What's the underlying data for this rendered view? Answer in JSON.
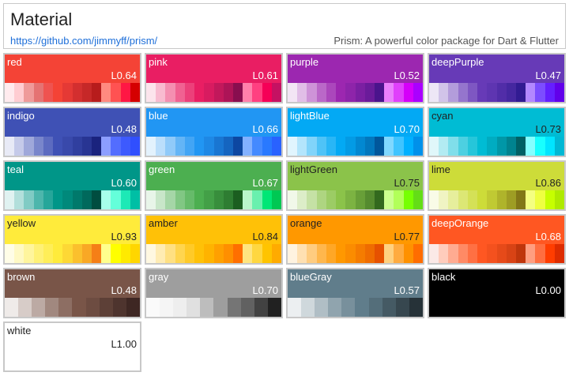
{
  "header": {
    "title": "Material",
    "link": "https://github.com/jimmyff/prism/",
    "tagline": "Prism: A powerful color package for Dart & Flutter"
  },
  "palettes": [
    {
      "name": "red",
      "lum": "L0.64",
      "color": "#f44336",
      "text": "#ffffff",
      "swatches": [
        "#ffebee",
        "#ffcdd2",
        "#ef9a9a",
        "#e57373",
        "#ef5350",
        "#f44336",
        "#e53935",
        "#d32f2f",
        "#c62828",
        "#b71c1c",
        "#ff8a80",
        "#ff5252",
        "#ff1744",
        "#d50000"
      ]
    },
    {
      "name": "pink",
      "lum": "L0.61",
      "color": "#e91e63",
      "text": "#ffffff",
      "swatches": [
        "#fce4ec",
        "#f8bbd0",
        "#f48fb1",
        "#f06292",
        "#ec407a",
        "#e91e63",
        "#d81b60",
        "#c2185b",
        "#ad1457",
        "#880e4f",
        "#ff80ab",
        "#ff4081",
        "#f50057",
        "#c51162"
      ]
    },
    {
      "name": "purple",
      "lum": "L0.52",
      "color": "#9c27b0",
      "text": "#ffffff",
      "swatches": [
        "#f3e5f5",
        "#e1bee7",
        "#ce93d8",
        "#ba68c8",
        "#ab47bc",
        "#9c27b0",
        "#8e24aa",
        "#7b1fa2",
        "#6a1b9a",
        "#4a148c",
        "#ea80fc",
        "#e040fb",
        "#d500f9",
        "#aa00ff"
      ]
    },
    {
      "name": "deepPurple",
      "lum": "L0.47",
      "color": "#673ab7",
      "text": "#ffffff",
      "swatches": [
        "#ede7f6",
        "#d1c4e9",
        "#b39ddb",
        "#9575cd",
        "#7e57c2",
        "#673ab7",
        "#5e35b1",
        "#512da8",
        "#4527a0",
        "#311b92",
        "#b388ff",
        "#7c4dff",
        "#651fff",
        "#6200ea"
      ]
    },
    {
      "name": "indigo",
      "lum": "L0.48",
      "color": "#3f51b5",
      "text": "#ffffff",
      "swatches": [
        "#e8eaf6",
        "#c5cae9",
        "#9fa8da",
        "#7986cb",
        "#5c6bc0",
        "#3f51b5",
        "#3949ab",
        "#303f9f",
        "#283593",
        "#1a237e",
        "#8c9eff",
        "#536dfe",
        "#3d5afe",
        "#304ffe"
      ]
    },
    {
      "name": "blue",
      "lum": "L0.66",
      "color": "#2196f3",
      "text": "#ffffff",
      "swatches": [
        "#e3f2fd",
        "#bbdefb",
        "#90caf9",
        "#64b5f6",
        "#42a5f5",
        "#2196f3",
        "#1e88e5",
        "#1976d2",
        "#1565c0",
        "#0d47a1",
        "#82b1ff",
        "#448aff",
        "#2979ff",
        "#2962ff"
      ]
    },
    {
      "name": "lightBlue",
      "lum": "L0.70",
      "color": "#03a9f4",
      "text": "#ffffff",
      "swatches": [
        "#e1f5fe",
        "#b3e5fc",
        "#81d4fa",
        "#4fc3f7",
        "#29b6f6",
        "#03a9f4",
        "#039be5",
        "#0288d1",
        "#0277bd",
        "#01579b",
        "#80d8ff",
        "#40c4ff",
        "#00b0ff",
        "#0091ea"
      ]
    },
    {
      "name": "cyan",
      "lum": "L0.73",
      "color": "#00bcd4",
      "text": "#222222",
      "swatches": [
        "#e0f7fa",
        "#b2ebf2",
        "#80deea",
        "#4dd0e1",
        "#26c6da",
        "#00bcd4",
        "#00acc1",
        "#0097a7",
        "#00838f",
        "#006064",
        "#84ffff",
        "#18ffff",
        "#00e5ff",
        "#00b8d4"
      ]
    },
    {
      "name": "teal",
      "lum": "L0.60",
      "color": "#009688",
      "text": "#ffffff",
      "swatches": [
        "#e0f2f1",
        "#b2dfdb",
        "#80cbc4",
        "#4db6ac",
        "#26a69a",
        "#009688",
        "#00897b",
        "#00796b",
        "#00695c",
        "#004d40",
        "#a7ffeb",
        "#64ffda",
        "#1de9b6",
        "#00bfa5"
      ]
    },
    {
      "name": "green",
      "lum": "L0.67",
      "color": "#4caf50",
      "text": "#ffffff",
      "swatches": [
        "#e8f5e9",
        "#c8e6c9",
        "#a5d6a7",
        "#81c784",
        "#66bb6a",
        "#4caf50",
        "#43a047",
        "#388e3c",
        "#2e7d32",
        "#1b5e20",
        "#b9f6ca",
        "#69f0ae",
        "#00e676",
        "#00c853"
      ]
    },
    {
      "name": "lightGreen",
      "lum": "L0.75",
      "color": "#8bc34a",
      "text": "#222222",
      "swatches": [
        "#f1f8e9",
        "#dcedc8",
        "#c5e1a5",
        "#aed581",
        "#9ccc65",
        "#8bc34a",
        "#7cb342",
        "#689f38",
        "#558b2f",
        "#33691e",
        "#ccff90",
        "#b2ff59",
        "#76ff03",
        "#64dd17"
      ]
    },
    {
      "name": "lime",
      "lum": "L0.86",
      "color": "#cddc39",
      "text": "#222222",
      "swatches": [
        "#f9fbe7",
        "#f0f4c3",
        "#e6ee9c",
        "#dce775",
        "#d4e157",
        "#cddc39",
        "#c0ca33",
        "#afb42b",
        "#9e9d24",
        "#827717",
        "#f4ff81",
        "#eeff41",
        "#c6ff00",
        "#aeea00"
      ]
    },
    {
      "name": "yellow",
      "lum": "L0.93",
      "color": "#ffeb3b",
      "text": "#222222",
      "swatches": [
        "#fffde7",
        "#fff9c4",
        "#fff59d",
        "#fff176",
        "#ffee58",
        "#ffeb3b",
        "#fdd835",
        "#fbc02d",
        "#f9a825",
        "#f57f17",
        "#ffff8d",
        "#ffff00",
        "#ffea00",
        "#ffd600"
      ]
    },
    {
      "name": "amber",
      "lum": "L0.84",
      "color": "#ffc107",
      "text": "#222222",
      "swatches": [
        "#fff8e1",
        "#ffecb3",
        "#ffe082",
        "#ffd54f",
        "#ffca28",
        "#ffc107",
        "#ffb300",
        "#ffa000",
        "#ff8f00",
        "#ff6f00",
        "#ffe57f",
        "#ffd740",
        "#ffc400",
        "#ffab00"
      ]
    },
    {
      "name": "orange",
      "lum": "L0.77",
      "color": "#ff9800",
      "text": "#222222",
      "swatches": [
        "#fff3e0",
        "#ffe0b2",
        "#ffcc80",
        "#ffb74d",
        "#ffa726",
        "#ff9800",
        "#fb8c00",
        "#f57c00",
        "#ef6c00",
        "#e65100",
        "#ffd180",
        "#ffab40",
        "#ff9100",
        "#ff6d00"
      ]
    },
    {
      "name": "deepOrange",
      "lum": "L0.68",
      "color": "#ff5722",
      "text": "#ffffff",
      "swatches": [
        "#fbe9e7",
        "#ffccbc",
        "#ffab91",
        "#ff8a65",
        "#ff7043",
        "#ff5722",
        "#f4511e",
        "#e64a19",
        "#d84315",
        "#bf360c",
        "#ff9e80",
        "#ff6e40",
        "#ff3d00",
        "#dd2c00"
      ]
    },
    {
      "name": "brown",
      "lum": "L0.48",
      "color": "#795548",
      "text": "#ffffff",
      "swatches": [
        "#efebe9",
        "#d7ccc8",
        "#bcaaa4",
        "#a1887f",
        "#8d6e63",
        "#795548",
        "#6d4c41",
        "#5d4037",
        "#4e342e",
        "#3e2723"
      ]
    },
    {
      "name": "gray",
      "lum": "L0.70",
      "color": "#9e9e9e",
      "text": "#ffffff",
      "swatches": [
        "#fafafa",
        "#f5f5f5",
        "#eeeeee",
        "#e0e0e0",
        "#bdbdbd",
        "#9e9e9e",
        "#757575",
        "#616161",
        "#424242",
        "#212121"
      ]
    },
    {
      "name": "blueGray",
      "lum": "L0.57",
      "color": "#607d8b",
      "text": "#ffffff",
      "swatches": [
        "#eceff1",
        "#cfd8dc",
        "#b0bec5",
        "#90a4ae",
        "#78909c",
        "#607d8b",
        "#546e7a",
        "#455a64",
        "#37474f",
        "#263238"
      ]
    },
    {
      "name": "black",
      "lum": "L0.00",
      "color": "#000000",
      "text": "#ffffff",
      "swatches": []
    },
    {
      "name": "white",
      "lum": "L1.00",
      "color": "#ffffff",
      "text": "#222222",
      "swatches": []
    }
  ]
}
